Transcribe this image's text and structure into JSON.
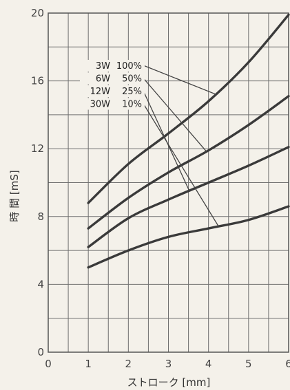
{
  "chart_data": {
    "type": "line",
    "title": "",
    "xlabel": "ストローク [mm]",
    "ylabel": "時 間 [mS]",
    "xlim": [
      0,
      6
    ],
    "ylim": [
      0,
      20
    ],
    "xticks": [
      0,
      1,
      2,
      3,
      4,
      5,
      6
    ],
    "yticks": [
      0,
      4,
      8,
      12,
      16,
      20
    ],
    "grid": true,
    "legend_placement": "top-center",
    "series": [
      {
        "name": "3W 100%",
        "x": [
          1,
          2,
          3,
          4,
          5,
          6
        ],
        "y": [
          8.8,
          11.1,
          12.9,
          14.8,
          17.1,
          19.9
        ]
      },
      {
        "name": "6W 50%",
        "x": [
          1,
          2,
          3,
          4,
          5,
          6
        ],
        "y": [
          7.3,
          9.1,
          10.6,
          11.9,
          13.4,
          15.1
        ]
      },
      {
        "name": "12W 25%",
        "x": [
          1,
          2,
          3,
          4,
          5,
          6
        ],
        "y": [
          6.2,
          7.9,
          9.0,
          10.0,
          11.0,
          12.1
        ]
      },
      {
        "name": "30W 10%",
        "x": [
          1,
          2,
          3,
          4,
          5,
          6
        ],
        "y": [
          5.0,
          6.0,
          6.8,
          7.3,
          7.8,
          8.6
        ]
      }
    ],
    "legend": [
      {
        "watt": "3W",
        "pct": "100%"
      },
      {
        "watt": "6W",
        "pct": "50%"
      },
      {
        "watt": "12W",
        "pct": "25%"
      },
      {
        "watt": "30W",
        "pct": "10%"
      }
    ]
  }
}
